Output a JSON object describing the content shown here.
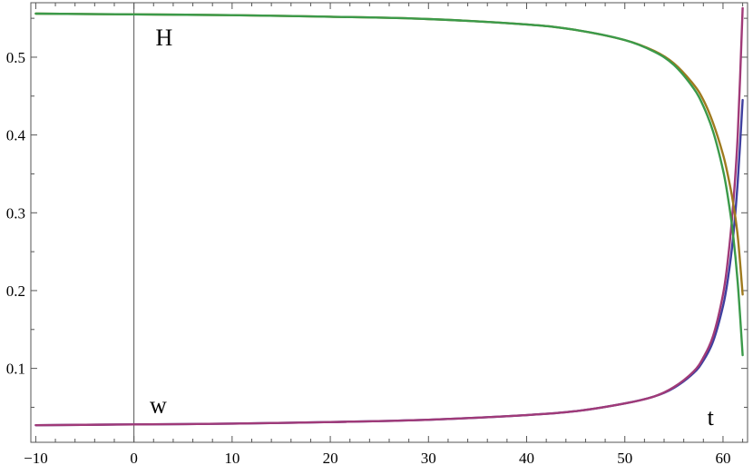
{
  "chart_data": {
    "type": "line",
    "title": "",
    "xlabel": "",
    "ylabel": "",
    "xlim": [
      -10.5,
      62.5
    ],
    "ylim": [
      0.005,
      0.57
    ],
    "xticks": [
      -10,
      0,
      10,
      20,
      30,
      40,
      50,
      60
    ],
    "xtick_labels": [
      "−10",
      "0",
      "10",
      "20",
      "30",
      "40",
      "50",
      "60"
    ],
    "yticks": [
      0.1,
      0.2,
      0.3,
      0.4,
      0.5
    ],
    "ytick_labels": [
      "0.1",
      "0.2",
      "0.3",
      "0.4",
      "0.5"
    ],
    "grid": false,
    "vertical_axis_at_x": 0,
    "annotations": [
      {
        "text": "H",
        "x": 2.2,
        "y": 0.515
      },
      {
        "text": "w",
        "x": 1.6,
        "y": 0.043
      },
      {
        "text": "t",
        "x": 58.4,
        "y": 0.027
      }
    ],
    "series": [
      {
        "color": "#3f3f9f",
        "x": [
          -10,
          0,
          10,
          20,
          30,
          40,
          45,
          50,
          53,
          55,
          57,
          58,
          59,
          60,
          60.5,
          61,
          61.5,
          62
        ],
        "y": [
          0.027,
          0.028,
          0.029,
          0.031,
          0.034,
          0.04,
          0.045,
          0.055,
          0.064,
          0.075,
          0.094,
          0.11,
          0.135,
          0.18,
          0.215,
          0.265,
          0.34,
          0.445
        ]
      },
      {
        "color": "#a03a78",
        "x": [
          -10,
          0,
          10,
          20,
          30,
          40,
          45,
          50,
          53,
          55,
          57,
          58,
          59,
          60,
          60.5,
          61,
          61.5,
          62
        ],
        "y": [
          0.027,
          0.028,
          0.029,
          0.031,
          0.034,
          0.04,
          0.045,
          0.055,
          0.064,
          0.076,
          0.096,
          0.114,
          0.142,
          0.195,
          0.24,
          0.305,
          0.4,
          0.563
        ]
      },
      {
        "color": "#9f7a1e",
        "x": [
          -10,
          0,
          10,
          20,
          30,
          40,
          45,
          50,
          53,
          55,
          57,
          58,
          59,
          60,
          60.5,
          61,
          61.5,
          62
        ],
        "y": [
          0.556,
          0.555,
          0.554,
          0.552,
          0.549,
          0.542,
          0.535,
          0.522,
          0.508,
          0.492,
          0.465,
          0.445,
          0.415,
          0.375,
          0.348,
          0.315,
          0.27,
          0.195
        ]
      },
      {
        "color": "#3b9a4a",
        "x": [
          -10,
          0,
          10,
          20,
          30,
          40,
          45,
          50,
          53,
          55,
          57,
          58,
          59,
          60,
          60.5,
          61,
          61.5,
          62
        ],
        "y": [
          0.556,
          0.555,
          0.554,
          0.552,
          0.549,
          0.542,
          0.535,
          0.522,
          0.507,
          0.49,
          0.46,
          0.437,
          0.404,
          0.355,
          0.32,
          0.275,
          0.21,
          0.117
        ]
      }
    ]
  }
}
